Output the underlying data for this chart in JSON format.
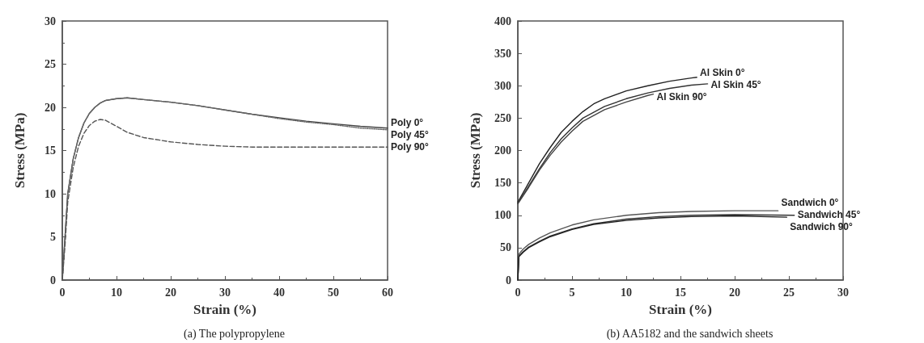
{
  "chart_data": [
    {
      "type": "line",
      "title": "(a) The polypropylene",
      "xlabel": "Strain (%)",
      "ylabel": "Stress (MPa)",
      "xlim": [
        0,
        60
      ],
      "xticks": [
        0,
        10,
        20,
        30,
        40,
        50,
        60
      ],
      "ylim": [
        0,
        30
      ],
      "yticks": [
        0,
        5,
        10,
        15,
        20,
        25,
        30
      ],
      "grid": false,
      "legend": false,
      "marker": "none",
      "series": [
        {
          "name": "Poly 0°",
          "color": "#444444",
          "line_style": "solid",
          "x": [
            0,
            0.5,
            1,
            2,
            3,
            4,
            5,
            6,
            7,
            8,
            10,
            12,
            15,
            20,
            25,
            30,
            35,
            40,
            45,
            50,
            55,
            60
          ],
          "values": [
            0,
            5,
            10,
            14,
            16.5,
            18.2,
            19.3,
            20,
            20.5,
            20.8,
            21,
            21.1,
            20.9,
            20.6,
            20.2,
            19.7,
            19.2,
            18.8,
            18.4,
            18.1,
            17.8,
            17.6
          ]
        },
        {
          "name": "Poly 45°",
          "color": "#666666",
          "line_style": "dotted",
          "x": [
            0,
            0.5,
            1,
            2,
            3,
            4,
            5,
            6,
            7,
            8,
            10,
            12,
            15,
            20,
            25,
            30,
            35,
            40,
            45,
            50,
            55,
            60
          ],
          "values": [
            0,
            5,
            10,
            14,
            16.5,
            18.2,
            19.3,
            20,
            20.5,
            20.8,
            21,
            21.1,
            20.9,
            20.6,
            20.2,
            19.7,
            19.2,
            18.7,
            18.3,
            18,
            17.6,
            17.4
          ]
        },
        {
          "name": "Poly 90°",
          "color": "#555555",
          "line_style": "dashed",
          "x": [
            0,
            0.5,
            1,
            2,
            3,
            4,
            5,
            6,
            7,
            8,
            10,
            12,
            15,
            20,
            25,
            30,
            35,
            40,
            50,
            60
          ],
          "values": [
            0,
            4,
            9,
            13,
            15.5,
            17,
            17.9,
            18.4,
            18.6,
            18.5,
            17.8,
            17.1,
            16.5,
            16,
            15.7,
            15.5,
            15.4,
            15.4,
            15.4,
            15.4
          ]
        }
      ]
    },
    {
      "type": "line",
      "title": "(b) AA5182 and the sandwich sheets",
      "xlabel": "Strain (%)",
      "ylabel": "Stress (MPa)",
      "xlim": [
        0,
        30
      ],
      "xticks": [
        0,
        5,
        10,
        15,
        20,
        25,
        30
      ],
      "ylim": [
        0,
        400
      ],
      "yticks": [
        0,
        50,
        100,
        150,
        200,
        250,
        300,
        350,
        400
      ],
      "grid": false,
      "legend": false,
      "marker": "none",
      "series": [
        {
          "name": "Al Skin 0°",
          "color": "#222222",
          "line_style": "solid",
          "x": [
            0,
            1,
            2,
            3,
            4,
            5,
            6,
            7,
            8,
            10,
            12,
            14,
            16,
            16.5
          ],
          "values": [
            120,
            150,
            180,
            205,
            228,
            245,
            260,
            272,
            280,
            292,
            300,
            307,
            312,
            313
          ]
        },
        {
          "name": "Al Skin 45°",
          "color": "#333333",
          "line_style": "solid",
          "x": [
            0,
            1,
            2,
            3,
            4,
            5,
            6,
            8,
            10,
            12,
            14,
            16,
            17.5
          ],
          "values": [
            118,
            145,
            172,
            197,
            218,
            235,
            250,
            268,
            280,
            289,
            296,
            301,
            303
          ]
        },
        {
          "name": "Al Skin 90°",
          "color": "#444444",
          "line_style": "solid",
          "x": [
            0,
            1,
            2,
            3,
            4,
            5,
            6,
            8,
            10,
            12,
            12.5
          ],
          "values": [
            118,
            143,
            170,
            193,
            213,
            230,
            245,
            263,
            275,
            285,
            287
          ]
        },
        {
          "name": "Sandwich 0°",
          "color": "#555555",
          "line_style": "solid",
          "x": [
            0,
            0.1,
            0.5,
            1,
            2,
            3,
            5,
            7,
            10,
            13,
            16,
            20,
            24
          ],
          "values": [
            0,
            40,
            48,
            55,
            65,
            73,
            85,
            93,
            100,
            104,
            106,
            107,
            107
          ]
        },
        {
          "name": "Sandwich 45°",
          "color": "#333333",
          "line_style": "solid",
          "x": [
            0,
            0.1,
            0.5,
            1,
            2,
            3,
            5,
            7,
            10,
            13,
            16,
            20,
            25.5
          ],
          "values": [
            0,
            37,
            44,
            51,
            60,
            68,
            79,
            87,
            94,
            98,
            100,
            101,
            100
          ]
        },
        {
          "name": "Sandwich 90°",
          "color": "#222222",
          "line_style": "solid",
          "x": [
            0,
            0.1,
            0.5,
            1,
            2,
            3,
            5,
            7,
            10,
            13,
            16,
            20,
            24.8
          ],
          "values": [
            0,
            36,
            43,
            50,
            59,
            67,
            78,
            86,
            92,
            96,
            98,
            99,
            97
          ]
        }
      ]
    }
  ]
}
